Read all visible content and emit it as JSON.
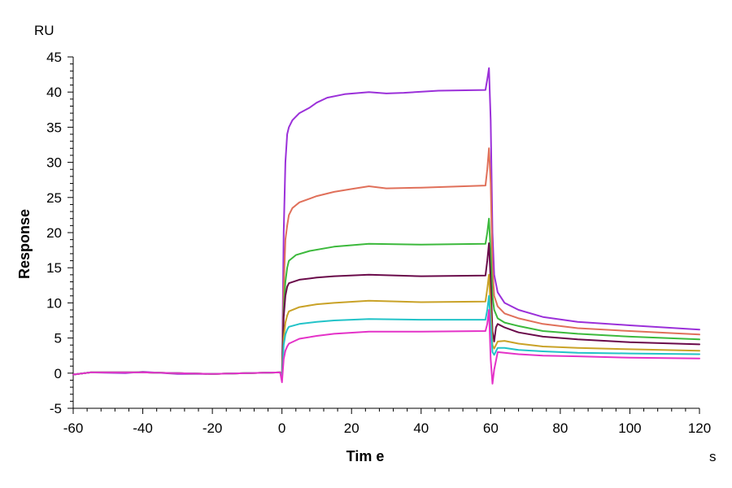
{
  "chart_data": {
    "type": "line",
    "xlabel": "Tim e",
    "xunit": "s",
    "ylabel": "Response",
    "yunit": "RU",
    "xlim": [
      -60,
      120
    ],
    "ylim": [
      -5,
      45
    ],
    "xticks": [
      -60,
      -40,
      -20,
      0,
      20,
      40,
      60,
      80,
      100,
      120
    ],
    "yticks": [
      -5,
      0,
      5,
      10,
      15,
      20,
      25,
      30,
      35,
      40,
      45
    ],
    "grid": false,
    "legend": "none",
    "series": [
      {
        "color": "#9b30d9",
        "points": [
          [
            -60,
            -0.2
          ],
          [
            -55,
            0.1
          ],
          [
            -45,
            0.0
          ],
          [
            -40,
            0.2
          ],
          [
            -30,
            -0.1
          ],
          [
            -20,
            -0.1
          ],
          [
            -10,
            0.0
          ],
          [
            -0.5,
            0.1
          ],
          [
            0,
            -0.5
          ],
          [
            0.5,
            20
          ],
          [
            1,
            30
          ],
          [
            1.5,
            34
          ],
          [
            2,
            35
          ],
          [
            3,
            36
          ],
          [
            5,
            37
          ],
          [
            8,
            37.8
          ],
          [
            10,
            38.5
          ],
          [
            13,
            39.2
          ],
          [
            18,
            39.7
          ],
          [
            25,
            40
          ],
          [
            30,
            39.8
          ],
          [
            35,
            39.9
          ],
          [
            45,
            40.2
          ],
          [
            58.5,
            40.3
          ],
          [
            59,
            41.8
          ],
          [
            59.5,
            43.4
          ],
          [
            60,
            36
          ],
          [
            60.5,
            20
          ],
          [
            61,
            14
          ],
          [
            62,
            11.5
          ],
          [
            64,
            10
          ],
          [
            68,
            9
          ],
          [
            75,
            8
          ],
          [
            85,
            7.3
          ],
          [
            100,
            6.8
          ],
          [
            120,
            6.2
          ]
        ]
      },
      {
        "color": "#e0705a",
        "points": [
          [
            -60,
            -0.2
          ],
          [
            -55,
            0.1
          ],
          [
            -40,
            0.1
          ],
          [
            -20,
            -0.1
          ],
          [
            -0.5,
            0.1
          ],
          [
            0,
            -0.5
          ],
          [
            0.5,
            12
          ],
          [
            1,
            19
          ],
          [
            1.5,
            21
          ],
          [
            2,
            22.5
          ],
          [
            3,
            23.5
          ],
          [
            5,
            24.3
          ],
          [
            10,
            25.2
          ],
          [
            15,
            25.8
          ],
          [
            20,
            26.2
          ],
          [
            25,
            26.6
          ],
          [
            30,
            26.3
          ],
          [
            40,
            26.4
          ],
          [
            58.5,
            26.7
          ],
          [
            59,
            29
          ],
          [
            59.5,
            32
          ],
          [
            60,
            27
          ],
          [
            60.5,
            15
          ],
          [
            61,
            11
          ],
          [
            62,
            9.5
          ],
          [
            64,
            8.5
          ],
          [
            68,
            7.8
          ],
          [
            75,
            7
          ],
          [
            85,
            6.4
          ],
          [
            100,
            6.0
          ],
          [
            120,
            5.5
          ]
        ]
      },
      {
        "color": "#3cb93c",
        "points": [
          [
            -60,
            -0.2
          ],
          [
            -55,
            0.1
          ],
          [
            -40,
            0.1
          ],
          [
            -20,
            -0.1
          ],
          [
            -0.5,
            0.1
          ],
          [
            0,
            -0.6
          ],
          [
            0.5,
            9
          ],
          [
            1,
            13
          ],
          [
            1.5,
            15
          ],
          [
            2,
            16
          ],
          [
            4,
            16.8
          ],
          [
            8,
            17.4
          ],
          [
            15,
            18
          ],
          [
            25,
            18.4
          ],
          [
            40,
            18.3
          ],
          [
            58.5,
            18.4
          ],
          [
            59,
            20
          ],
          [
            59.5,
            22
          ],
          [
            60,
            17
          ],
          [
            60.5,
            11
          ],
          [
            61,
            9
          ],
          [
            62,
            7.8
          ],
          [
            64,
            7.2
          ],
          [
            68,
            6.7
          ],
          [
            75,
            6.0
          ],
          [
            85,
            5.6
          ],
          [
            100,
            5.2
          ],
          [
            120,
            4.8
          ]
        ]
      },
      {
        "color": "#6a0a4a",
        "points": [
          [
            -60,
            -0.2
          ],
          [
            -55,
            0.1
          ],
          [
            -40,
            0.1
          ],
          [
            -20,
            -0.1
          ],
          [
            -0.5,
            0.1
          ],
          [
            0,
            -0.7
          ],
          [
            0.5,
            8
          ],
          [
            1,
            11
          ],
          [
            1.5,
            12.3
          ],
          [
            2,
            12.8
          ],
          [
            5,
            13.3
          ],
          [
            10,
            13.6
          ],
          [
            15,
            13.8
          ],
          [
            25,
            14
          ],
          [
            40,
            13.8
          ],
          [
            58.5,
            13.9
          ],
          [
            59,
            16
          ],
          [
            59.5,
            18.5
          ],
          [
            60,
            13
          ],
          [
            60.5,
            6
          ],
          [
            61,
            4.5
          ],
          [
            61.5,
            6.5
          ],
          [
            62,
            7
          ],
          [
            64,
            6.5
          ],
          [
            68,
            5.8
          ],
          [
            75,
            5.2
          ],
          [
            85,
            4.8
          ],
          [
            100,
            4.4
          ],
          [
            120,
            4.1
          ]
        ]
      },
      {
        "color": "#c9a227",
        "points": [
          [
            -60,
            -0.2
          ],
          [
            -55,
            0.1
          ],
          [
            -40,
            0.1
          ],
          [
            -20,
            -0.1
          ],
          [
            -0.5,
            0.1
          ],
          [
            0,
            -0.9
          ],
          [
            0.5,
            5
          ],
          [
            1,
            7.2
          ],
          [
            1.5,
            8.2
          ],
          [
            2,
            8.8
          ],
          [
            5,
            9.4
          ],
          [
            10,
            9.8
          ],
          [
            15,
            10.0
          ],
          [
            25,
            10.3
          ],
          [
            40,
            10.1
          ],
          [
            58.5,
            10.2
          ],
          [
            59,
            12
          ],
          [
            59.5,
            14
          ],
          [
            60,
            9
          ],
          [
            60.5,
            4
          ],
          [
            61,
            3.5
          ],
          [
            62,
            4.5
          ],
          [
            64,
            4.6
          ],
          [
            68,
            4.2
          ],
          [
            75,
            3.8
          ],
          [
            85,
            3.6
          ],
          [
            100,
            3.4
          ],
          [
            120,
            3.2
          ]
        ]
      },
      {
        "color": "#22c3c8",
        "points": [
          [
            -60,
            -0.2
          ],
          [
            -55,
            0.1
          ],
          [
            -40,
            0.1
          ],
          [
            -20,
            -0.1
          ],
          [
            -0.5,
            0.1
          ],
          [
            0,
            -1.0
          ],
          [
            0.5,
            4
          ],
          [
            1,
            5.5
          ],
          [
            1.5,
            6.2
          ],
          [
            2,
            6.6
          ],
          [
            5,
            7.0
          ],
          [
            10,
            7.3
          ],
          [
            15,
            7.5
          ],
          [
            25,
            7.7
          ],
          [
            40,
            7.6
          ],
          [
            58.5,
            7.6
          ],
          [
            59,
            9
          ],
          [
            59.5,
            11
          ],
          [
            60,
            7
          ],
          [
            60.5,
            3
          ],
          [
            61,
            2.6
          ],
          [
            62,
            3.6
          ],
          [
            64,
            3.6
          ],
          [
            68,
            3.3
          ],
          [
            75,
            3.1
          ],
          [
            85,
            2.9
          ],
          [
            100,
            2.8
          ],
          [
            120,
            2.7
          ]
        ]
      },
      {
        "color": "#e432c8",
        "points": [
          [
            -60,
            -0.2
          ],
          [
            -55,
            0.1
          ],
          [
            -40,
            0.1
          ],
          [
            -20,
            -0.1
          ],
          [
            -0.5,
            0.1
          ],
          [
            0,
            -1.3
          ],
          [
            0.5,
            2
          ],
          [
            1,
            3.2
          ],
          [
            1.5,
            3.8
          ],
          [
            2,
            4.2
          ],
          [
            5,
            4.9
          ],
          [
            10,
            5.3
          ],
          [
            15,
            5.6
          ],
          [
            25,
            5.9
          ],
          [
            40,
            5.9
          ],
          [
            58.5,
            6.0
          ],
          [
            59,
            7
          ],
          [
            59.5,
            9
          ],
          [
            60,
            2
          ],
          [
            60.5,
            -1.5
          ],
          [
            61,
            0.5
          ],
          [
            62,
            3.0
          ],
          [
            64,
            2.9
          ],
          [
            68,
            2.7
          ],
          [
            75,
            2.5
          ],
          [
            85,
            2.4
          ],
          [
            100,
            2.2
          ],
          [
            120,
            2.1
          ]
        ]
      }
    ]
  }
}
